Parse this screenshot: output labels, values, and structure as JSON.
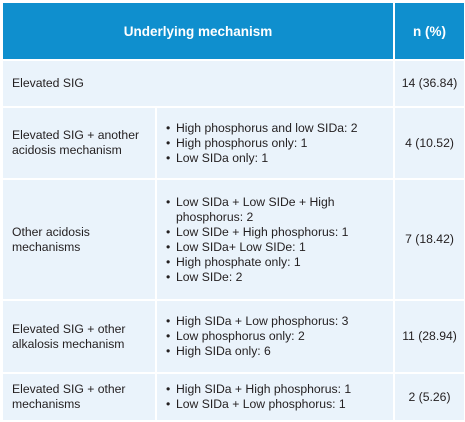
{
  "header": {
    "mechanism": "Underlying mechanism",
    "n": "n (%)"
  },
  "rows": [
    {
      "mechanism": "Elevated SIG",
      "details": [],
      "n": "14 (36.84)"
    },
    {
      "mechanism": "Elevated SIG + another acidosis mechanism",
      "details": [
        "High phosphorus and low SIDa: 2",
        "High phosphorus only: 1",
        "Low SIDa only: 1"
      ],
      "n": "4 (10.52)"
    },
    {
      "mechanism": "Other acidosis mechanisms",
      "details": [
        "Low SIDa + Low SIDe + High phosphorus: 2",
        "Low SIDe + High phosphorus: 1",
        "Low SIDa+ Low SIDe: 1",
        "High phosphate only: 1",
        "Low SIDe: 2"
      ],
      "n": "7 (18.42)"
    },
    {
      "mechanism": "Elevated SIG + other alkalosis mechanism",
      "details": [
        "High SIDa + Low phosphorus: 3",
        "Low phosphorus only: 2",
        "High SIDa only: 6"
      ],
      "n": "11 (28.94)"
    },
    {
      "mechanism": "Elevated SIG + other mechanisms",
      "details": [
        "High SIDa + High phosphorus: 1",
        "Low SIDa + Low phosphorus: 1"
      ],
      "n": "2 (5.26)"
    }
  ]
}
